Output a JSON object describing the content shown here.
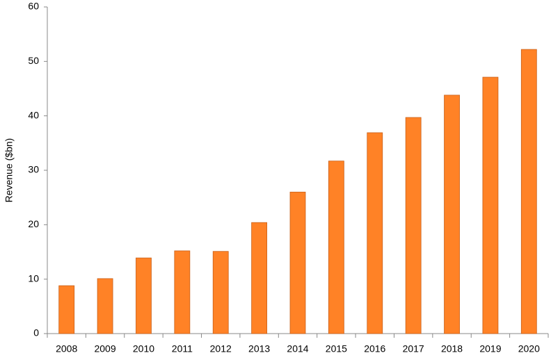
{
  "chart_data": {
    "type": "bar",
    "y_label": "Revenue ($bn)",
    "categories": [
      "2008",
      "2009",
      "2010",
      "2011",
      "2012",
      "2013",
      "2014",
      "2015",
      "2016",
      "2017",
      "2018",
      "2019",
      "2020"
    ],
    "values": [
      8.8,
      10.1,
      13.9,
      15.2,
      15.1,
      20.4,
      26.0,
      31.7,
      36.9,
      39.7,
      43.8,
      47.1,
      52.2
    ],
    "color": "#ff8226",
    "ylim": [
      0,
      60
    ],
    "yticks": [
      0,
      10,
      20,
      30,
      40,
      50,
      60
    ],
    "grid": false
  }
}
